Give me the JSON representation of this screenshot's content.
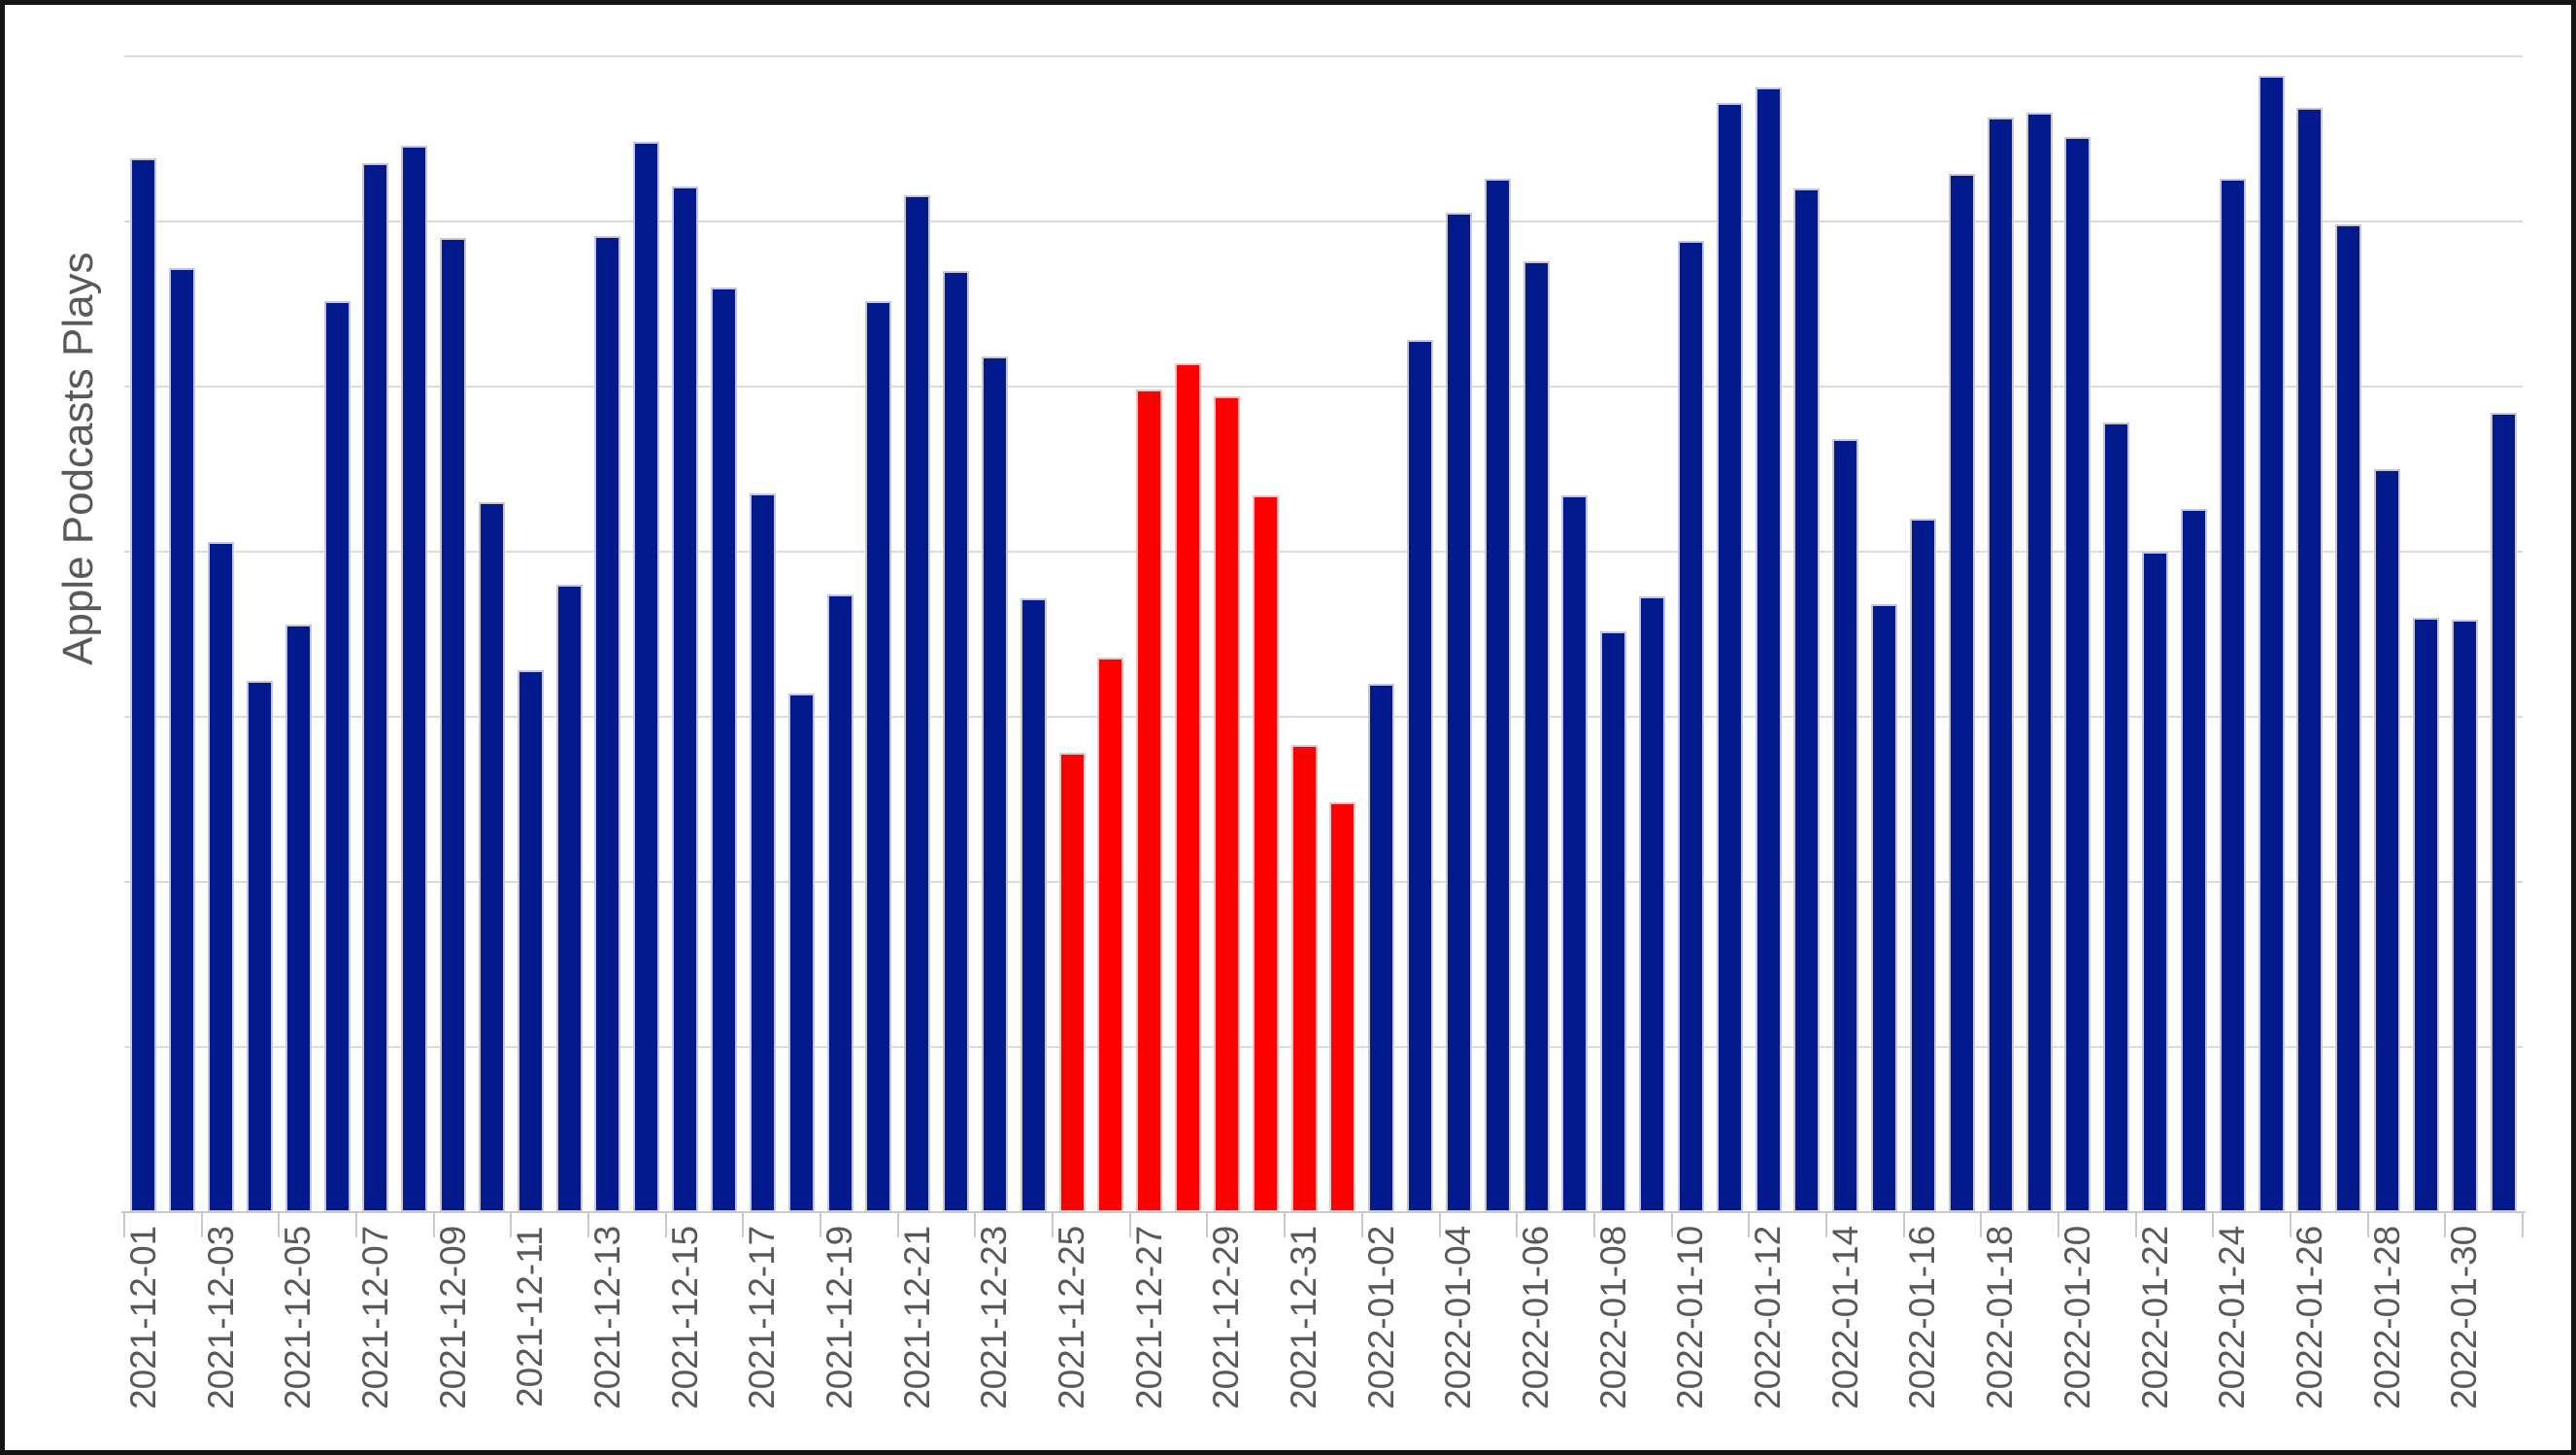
{
  "chart_data": {
    "type": "bar",
    "title": "",
    "xlabel": "",
    "ylabel": "Apple Podcasts Plays",
    "ylim": [
      0,
      3500
    ],
    "gridline_interval": 500,
    "grid": "horizontal",
    "legend": "none",
    "y_tick_labels_shown": false,
    "x_tick_label_rotation": 90,
    "x_tick_labels": [
      "2021-12-01",
      "2021-12-03",
      "2021-12-05",
      "2021-12-07",
      "2021-12-09",
      "2021-12-11",
      "2021-12-13",
      "2021-12-15",
      "2021-12-17",
      "2021-12-19",
      "2021-12-21",
      "2021-12-23",
      "2021-12-25",
      "2021-12-27",
      "2021-12-29",
      "2021-12-31",
      "2022-01-02",
      "2022-01-04",
      "2022-01-06",
      "2022-01-08",
      "2022-01-10",
      "2022-01-12",
      "2022-01-14",
      "2022-01-16",
      "2022-01-18",
      "2022-01-20",
      "2022-01-22",
      "2022-01-24",
      "2022-01-26",
      "2022-01-28",
      "2022-01-30"
    ],
    "categories": [
      "2021-12-01",
      "2021-12-02",
      "2021-12-03",
      "2021-12-04",
      "2021-12-05",
      "2021-12-06",
      "2021-12-07",
      "2021-12-08",
      "2021-12-09",
      "2021-12-10",
      "2021-12-11",
      "2021-12-12",
      "2021-12-13",
      "2021-12-14",
      "2021-12-15",
      "2021-12-16",
      "2021-12-17",
      "2021-12-18",
      "2021-12-19",
      "2021-12-20",
      "2021-12-21",
      "2021-12-22",
      "2021-12-23",
      "2021-12-24",
      "2021-12-25",
      "2021-12-26",
      "2021-12-27",
      "2021-12-28",
      "2021-12-29",
      "2021-12-30",
      "2021-12-31",
      "2022-01-01",
      "2022-01-02",
      "2022-01-03",
      "2022-01-04",
      "2022-01-05",
      "2022-01-06",
      "2022-01-07",
      "2022-01-08",
      "2022-01-09",
      "2022-01-10",
      "2022-01-11",
      "2022-01-12",
      "2022-01-13",
      "2022-01-14",
      "2022-01-15",
      "2022-01-16",
      "2022-01-17",
      "2022-01-18",
      "2022-01-19",
      "2022-01-20",
      "2022-01-21",
      "2022-01-22",
      "2022-01-23",
      "2022-01-24",
      "2022-01-25",
      "2022-01-26",
      "2022-01-27",
      "2022-01-28",
      "2022-01-29",
      "2022-01-30",
      "2022-01-31"
    ],
    "values": [
      3190,
      2860,
      2030,
      1610,
      1780,
      2760,
      3175,
      3230,
      2950,
      2150,
      1640,
      1900,
      2955,
      3240,
      3105,
      2800,
      2175,
      1570,
      1870,
      2760,
      3080,
      2850,
      2590,
      1860,
      1390,
      1680,
      2490,
      2570,
      2470,
      2170,
      1415,
      1240,
      1600,
      2640,
      3025,
      3130,
      2880,
      2170,
      1760,
      1865,
      2940,
      3360,
      3405,
      3100,
      2340,
      1840,
      2100,
      3145,
      3315,
      3330,
      3255,
      2390,
      2000,
      2130,
      3130,
      3440,
      3345,
      2990,
      2250,
      1800,
      1795,
      2420
    ],
    "highlighted_dates": [
      "2021-12-25",
      "2021-12-26",
      "2021-12-27",
      "2021-12-28",
      "2021-12-29",
      "2021-12-30",
      "2021-12-31",
      "2022-01-01"
    ],
    "colors": {
      "bar_default": "#021A8C",
      "bar_highlight": "#FF0000",
      "gridline": "#DCDCDC",
      "axis": "#C9C9C9",
      "label_text": "#595959",
      "frame": "#141414",
      "background": "#FFFFFF"
    }
  }
}
